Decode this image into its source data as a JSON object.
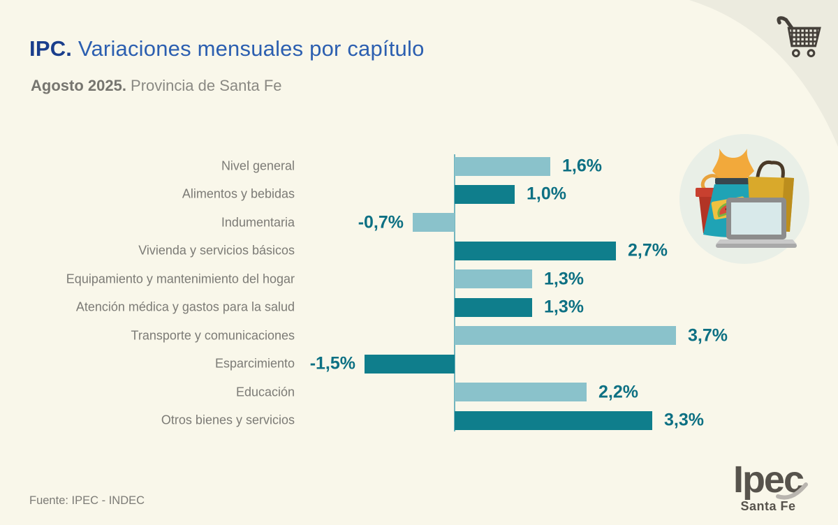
{
  "header": {
    "title_bold": "IPC.",
    "title_rest": " Variaciones mensuales por capítulo",
    "subtitle_bold": "Agosto 2025.",
    "subtitle_rest": " Provincia de Santa Fe"
  },
  "chart_data": {
    "type": "bar",
    "orientation": "horizontal",
    "title": "IPC. Variaciones mensuales por capítulo — Agosto 2025. Provincia de Santa Fe",
    "unit": "%",
    "xlim": [
      -1.5,
      3.7
    ],
    "baseline": 0,
    "categories": [
      "Nivel general",
      "Alimentos y bebidas",
      "Indumentaria",
      "Vivienda y servicios básicos",
      "Equipamiento y mantenimiento del hogar",
      "Atención médica y gastos para la salud",
      "Transporte y comunicaciones",
      "Esparcimiento",
      "Educación",
      "Otros bienes y servicios"
    ],
    "values": [
      1.6,
      1.0,
      -0.7,
      2.7,
      1.3,
      1.3,
      3.7,
      -1.5,
      2.2,
      3.3
    ],
    "value_labels": [
      "1,6%",
      "1,0%",
      "-0,7%",
      "2,7%",
      "1,3%",
      "1,3%",
      "3,7%",
      "-1,5%",
      "2,2%",
      "3,3%"
    ],
    "bar_color_light": "#8AC2CB",
    "bar_color_dark": "#0F7E8C",
    "value_text_color": "#0D7083",
    "axis_line_color": "#72B5BE",
    "label_color": "#7C7B76",
    "grid": false,
    "legend": false
  },
  "footer": {
    "source": "Fuente: IPEC - INDEC"
  },
  "logo": {
    "text": "Ipec",
    "subtext": "Santa Fe"
  },
  "icons": {
    "cart": "shopping-cart-icon",
    "illustration": "shopping-items-illustration"
  },
  "colors": {
    "background": "#F9F7EA",
    "corner_accent": "#ECEBDF",
    "illustration_circle": "#E9EFE7",
    "title_blue_dark": "#1A3E8C",
    "title_blue": "#2C5FB0",
    "icon_dark": "#45403A",
    "logo_gray": "#57534C"
  }
}
